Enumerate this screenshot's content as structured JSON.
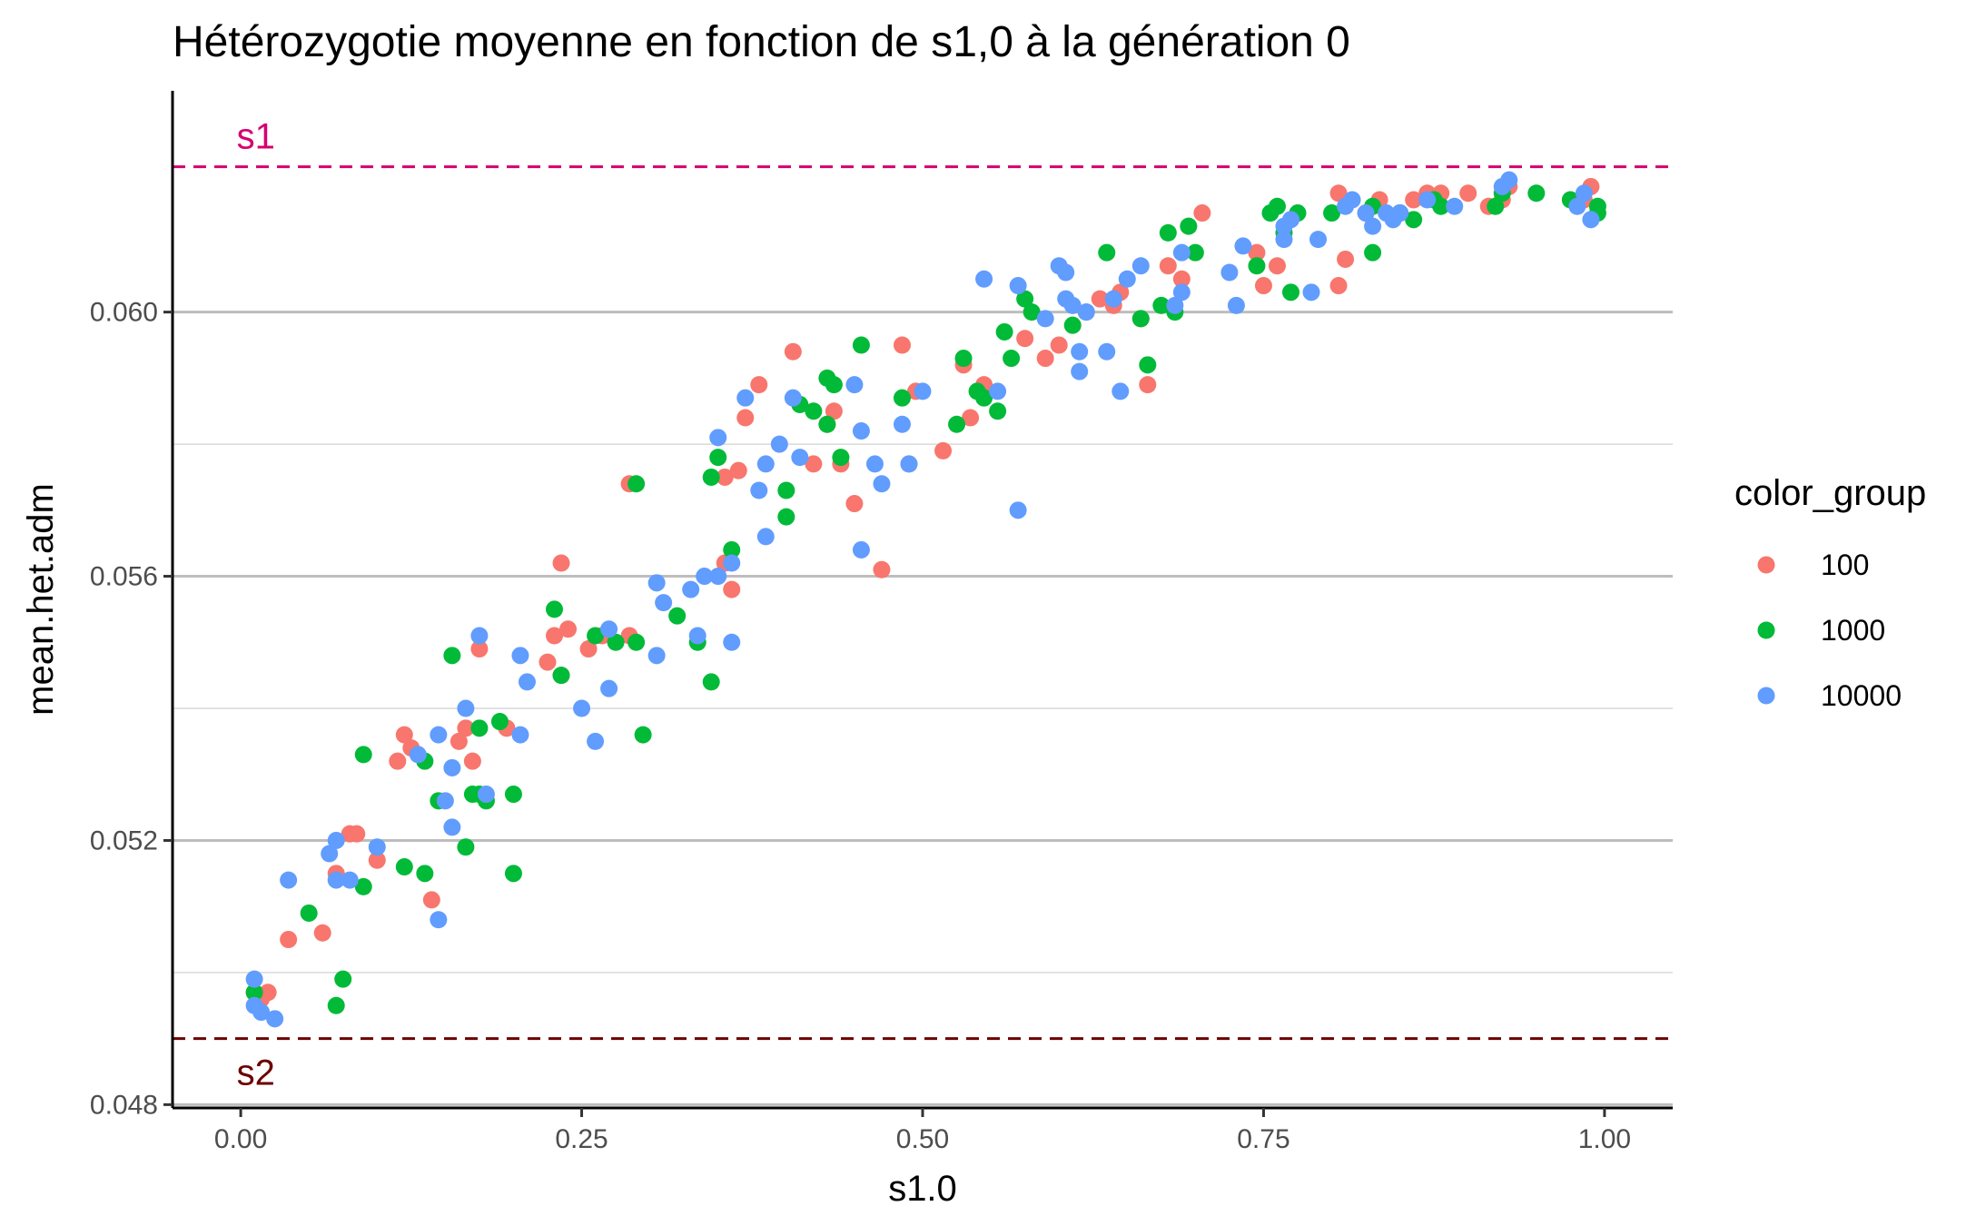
{
  "chart_data": {
    "type": "scatter",
    "title": "Hétérozygotie moyenne en fonction de s1,0 à la génération 0",
    "xlabel": "s1.0",
    "ylabel": "mean.het.adm",
    "xlim": [
      -0.05,
      1.05
    ],
    "ylim": [
      0.04795,
      0.06335
    ],
    "x_ticks": [
      0.0,
      0.25,
      0.5,
      0.75,
      1.0
    ],
    "x_tick_labels": [
      "0.00",
      "0.25",
      "0.50",
      "0.75",
      "1.00"
    ],
    "y_ticks": [
      0.048,
      0.052,
      0.056,
      0.06
    ],
    "y_tick_labels": [
      "0.048",
      "0.052",
      "0.056",
      "0.060"
    ],
    "y_minor_gridlines": [
      0.05,
      0.054,
      0.058
    ],
    "grid": "horizontal",
    "legend": {
      "title": "color_group",
      "placement": "right"
    },
    "reference_lines": [
      {
        "label": "s1",
        "y": 0.0622,
        "color": "#D6006F",
        "style": "dashed"
      },
      {
        "label": "s2",
        "y": 0.049,
        "color": "#6B0000",
        "style": "dashed"
      }
    ],
    "series": [
      {
        "name": "100",
        "color": "#F8766D",
        "points": [
          [
            0.01,
            0.0497
          ],
          [
            0.015,
            0.0496
          ],
          [
            0.02,
            0.0497
          ],
          [
            0.035,
            0.0505
          ],
          [
            0.06,
            0.0506
          ],
          [
            0.07,
            0.0515
          ],
          [
            0.08,
            0.0521
          ],
          [
            0.085,
            0.0521
          ],
          [
            0.1,
            0.0517
          ],
          [
            0.115,
            0.0532
          ],
          [
            0.12,
            0.0536
          ],
          [
            0.125,
            0.0534
          ],
          [
            0.14,
            0.0511
          ],
          [
            0.16,
            0.0535
          ],
          [
            0.165,
            0.0537
          ],
          [
            0.17,
            0.0532
          ],
          [
            0.175,
            0.0549
          ],
          [
            0.195,
            0.0537
          ],
          [
            0.225,
            0.0547
          ],
          [
            0.23,
            0.0551
          ],
          [
            0.235,
            0.0562
          ],
          [
            0.235,
            0.0545
          ],
          [
            0.24,
            0.0552
          ],
          [
            0.255,
            0.0549
          ],
          [
            0.265,
            0.0551
          ],
          [
            0.285,
            0.0574
          ],
          [
            0.285,
            0.0551
          ],
          [
            0.355,
            0.0562
          ],
          [
            0.355,
            0.0575
          ],
          [
            0.36,
            0.0558
          ],
          [
            0.37,
            0.0584
          ],
          [
            0.365,
            0.0576
          ],
          [
            0.38,
            0.0589
          ],
          [
            0.405,
            0.0594
          ],
          [
            0.42,
            0.0577
          ],
          [
            0.43,
            0.0583
          ],
          [
            0.44,
            0.0577
          ],
          [
            0.435,
            0.0585
          ],
          [
            0.45,
            0.0571
          ],
          [
            0.47,
            0.0561
          ],
          [
            0.485,
            0.0595
          ],
          [
            0.49,
            0.0577
          ],
          [
            0.495,
            0.0588
          ],
          [
            0.515,
            0.0579
          ],
          [
            0.53,
            0.0592
          ],
          [
            0.535,
            0.0584
          ],
          [
            0.545,
            0.0589
          ],
          [
            0.575,
            0.0596
          ],
          [
            0.59,
            0.0593
          ],
          [
            0.6,
            0.0595
          ],
          [
            0.62,
            0.06
          ],
          [
            0.63,
            0.0602
          ],
          [
            0.64,
            0.0601
          ],
          [
            0.645,
            0.0603
          ],
          [
            0.66,
            0.0599
          ],
          [
            0.665,
            0.0589
          ],
          [
            0.68,
            0.0607
          ],
          [
            0.69,
            0.0605
          ],
          [
            0.705,
            0.0615
          ],
          [
            0.745,
            0.0609
          ],
          [
            0.75,
            0.0604
          ],
          [
            0.76,
            0.0607
          ],
          [
            0.805,
            0.0604
          ],
          [
            0.805,
            0.0618
          ],
          [
            0.81,
            0.0608
          ],
          [
            0.825,
            0.0615
          ],
          [
            0.835,
            0.0617
          ],
          [
            0.85,
            0.0615
          ],
          [
            0.86,
            0.0617
          ],
          [
            0.87,
            0.0618
          ],
          [
            0.88,
            0.0618
          ],
          [
            0.9,
            0.0618
          ],
          [
            0.915,
            0.0616
          ],
          [
            0.925,
            0.0617
          ],
          [
            0.93,
            0.0619
          ],
          [
            0.99,
            0.0619
          ],
          [
            0.985,
            0.0617
          ]
        ]
      },
      {
        "name": "1000",
        "color": "#00BA38",
        "points": [
          [
            0.01,
            0.0497
          ],
          [
            0.05,
            0.0509
          ],
          [
            0.07,
            0.0495
          ],
          [
            0.075,
            0.0499
          ],
          [
            0.09,
            0.0513
          ],
          [
            0.09,
            0.0533
          ],
          [
            0.12,
            0.0516
          ],
          [
            0.135,
            0.0532
          ],
          [
            0.135,
            0.0515
          ],
          [
            0.145,
            0.0526
          ],
          [
            0.155,
            0.0548
          ],
          [
            0.165,
            0.0519
          ],
          [
            0.17,
            0.0527
          ],
          [
            0.175,
            0.0527
          ],
          [
            0.18,
            0.0526
          ],
          [
            0.175,
            0.0537
          ],
          [
            0.19,
            0.0538
          ],
          [
            0.2,
            0.0527
          ],
          [
            0.2,
            0.0515
          ],
          [
            0.235,
            0.0545
          ],
          [
            0.23,
            0.0555
          ],
          [
            0.26,
            0.0551
          ],
          [
            0.275,
            0.055
          ],
          [
            0.29,
            0.0574
          ],
          [
            0.29,
            0.055
          ],
          [
            0.295,
            0.0536
          ],
          [
            0.32,
            0.0554
          ],
          [
            0.335,
            0.055
          ],
          [
            0.345,
            0.0544
          ],
          [
            0.345,
            0.0575
          ],
          [
            0.35,
            0.0578
          ],
          [
            0.36,
            0.0564
          ],
          [
            0.4,
            0.0569
          ],
          [
            0.4,
            0.0573
          ],
          [
            0.41,
            0.0586
          ],
          [
            0.42,
            0.0585
          ],
          [
            0.43,
            0.059
          ],
          [
            0.43,
            0.0583
          ],
          [
            0.435,
            0.0589
          ],
          [
            0.44,
            0.0578
          ],
          [
            0.455,
            0.0595
          ],
          [
            0.485,
            0.0587
          ],
          [
            0.525,
            0.0583
          ],
          [
            0.53,
            0.0593
          ],
          [
            0.54,
            0.0588
          ],
          [
            0.545,
            0.0587
          ],
          [
            0.555,
            0.0585
          ],
          [
            0.56,
            0.0597
          ],
          [
            0.565,
            0.0593
          ],
          [
            0.575,
            0.0602
          ],
          [
            0.58,
            0.06
          ],
          [
            0.61,
            0.0598
          ],
          [
            0.635,
            0.0609
          ],
          [
            0.66,
            0.0599
          ],
          [
            0.665,
            0.0592
          ],
          [
            0.68,
            0.0612
          ],
          [
            0.675,
            0.0601
          ],
          [
            0.685,
            0.06
          ],
          [
            0.695,
            0.0613
          ],
          [
            0.7,
            0.0609
          ],
          [
            0.745,
            0.0607
          ],
          [
            0.755,
            0.0615
          ],
          [
            0.77,
            0.0603
          ],
          [
            0.765,
            0.0612
          ],
          [
            0.76,
            0.0616
          ],
          [
            0.775,
            0.0615
          ],
          [
            0.8,
            0.0615
          ],
          [
            0.83,
            0.0616
          ],
          [
            0.83,
            0.0609
          ],
          [
            0.85,
            0.0615
          ],
          [
            0.86,
            0.0614
          ],
          [
            0.875,
            0.0617
          ],
          [
            0.88,
            0.0616
          ],
          [
            0.925,
            0.0618
          ],
          [
            0.95,
            0.0618
          ],
          [
            0.975,
            0.0617
          ],
          [
            0.995,
            0.0615
          ],
          [
            0.995,
            0.0616
          ],
          [
            0.92,
            0.0616
          ]
        ]
      },
      {
        "name": "10000",
        "color": "#619CFF",
        "points": [
          [
            0.01,
            0.0499
          ],
          [
            0.01,
            0.0495
          ],
          [
            0.015,
            0.0494
          ],
          [
            0.025,
            0.0493
          ],
          [
            0.035,
            0.0514
          ],
          [
            0.065,
            0.0518
          ],
          [
            0.07,
            0.052
          ],
          [
            0.07,
            0.0514
          ],
          [
            0.08,
            0.0514
          ],
          [
            0.1,
            0.0519
          ],
          [
            0.13,
            0.0533
          ],
          [
            0.145,
            0.0536
          ],
          [
            0.15,
            0.0526
          ],
          [
            0.155,
            0.0531
          ],
          [
            0.155,
            0.0522
          ],
          [
            0.145,
            0.0508
          ],
          [
            0.165,
            0.054
          ],
          [
            0.175,
            0.0551
          ],
          [
            0.18,
            0.0527
          ],
          [
            0.205,
            0.0536
          ],
          [
            0.205,
            0.0548
          ],
          [
            0.21,
            0.0544
          ],
          [
            0.25,
            0.054
          ],
          [
            0.26,
            0.0535
          ],
          [
            0.27,
            0.0552
          ],
          [
            0.27,
            0.0543
          ],
          [
            0.305,
            0.0559
          ],
          [
            0.31,
            0.0556
          ],
          [
            0.305,
            0.0548
          ],
          [
            0.33,
            0.0558
          ],
          [
            0.335,
            0.0551
          ],
          [
            0.34,
            0.056
          ],
          [
            0.35,
            0.0581
          ],
          [
            0.35,
            0.056
          ],
          [
            0.36,
            0.0562
          ],
          [
            0.36,
            0.055
          ],
          [
            0.37,
            0.0587
          ],
          [
            0.38,
            0.0573
          ],
          [
            0.385,
            0.0577
          ],
          [
            0.385,
            0.0566
          ],
          [
            0.395,
            0.058
          ],
          [
            0.405,
            0.0587
          ],
          [
            0.41,
            0.0578
          ],
          [
            0.45,
            0.0589
          ],
          [
            0.455,
            0.0582
          ],
          [
            0.455,
            0.0564
          ],
          [
            0.465,
            0.0577
          ],
          [
            0.47,
            0.0574
          ],
          [
            0.485,
            0.0583
          ],
          [
            0.49,
            0.0577
          ],
          [
            0.5,
            0.0588
          ],
          [
            0.545,
            0.0605
          ],
          [
            0.555,
            0.0588
          ],
          [
            0.57,
            0.0604
          ],
          [
            0.57,
            0.057
          ],
          [
            0.59,
            0.0599
          ],
          [
            0.6,
            0.0607
          ],
          [
            0.605,
            0.0606
          ],
          [
            0.605,
            0.0602
          ],
          [
            0.61,
            0.0601
          ],
          [
            0.615,
            0.0594
          ],
          [
            0.615,
            0.0591
          ],
          [
            0.62,
            0.06
          ],
          [
            0.635,
            0.0594
          ],
          [
            0.64,
            0.0602
          ],
          [
            0.645,
            0.0588
          ],
          [
            0.65,
            0.0605
          ],
          [
            0.66,
            0.0607
          ],
          [
            0.685,
            0.0601
          ],
          [
            0.69,
            0.0603
          ],
          [
            0.69,
            0.0609
          ],
          [
            0.725,
            0.0606
          ],
          [
            0.735,
            0.061
          ],
          [
            0.73,
            0.0601
          ],
          [
            0.765,
            0.0613
          ],
          [
            0.765,
            0.0611
          ],
          [
            0.77,
            0.0614
          ],
          [
            0.785,
            0.0603
          ],
          [
            0.79,
            0.0611
          ],
          [
            0.81,
            0.0616
          ],
          [
            0.815,
            0.0617
          ],
          [
            0.825,
            0.0615
          ],
          [
            0.83,
            0.0613
          ],
          [
            0.84,
            0.0615
          ],
          [
            0.845,
            0.0614
          ],
          [
            0.85,
            0.0615
          ],
          [
            0.87,
            0.0617
          ],
          [
            0.89,
            0.0616
          ],
          [
            0.925,
            0.0619
          ],
          [
            0.93,
            0.062
          ],
          [
            0.98,
            0.0616
          ],
          [
            0.985,
            0.0618
          ],
          [
            0.99,
            0.0614
          ]
        ]
      }
    ]
  }
}
